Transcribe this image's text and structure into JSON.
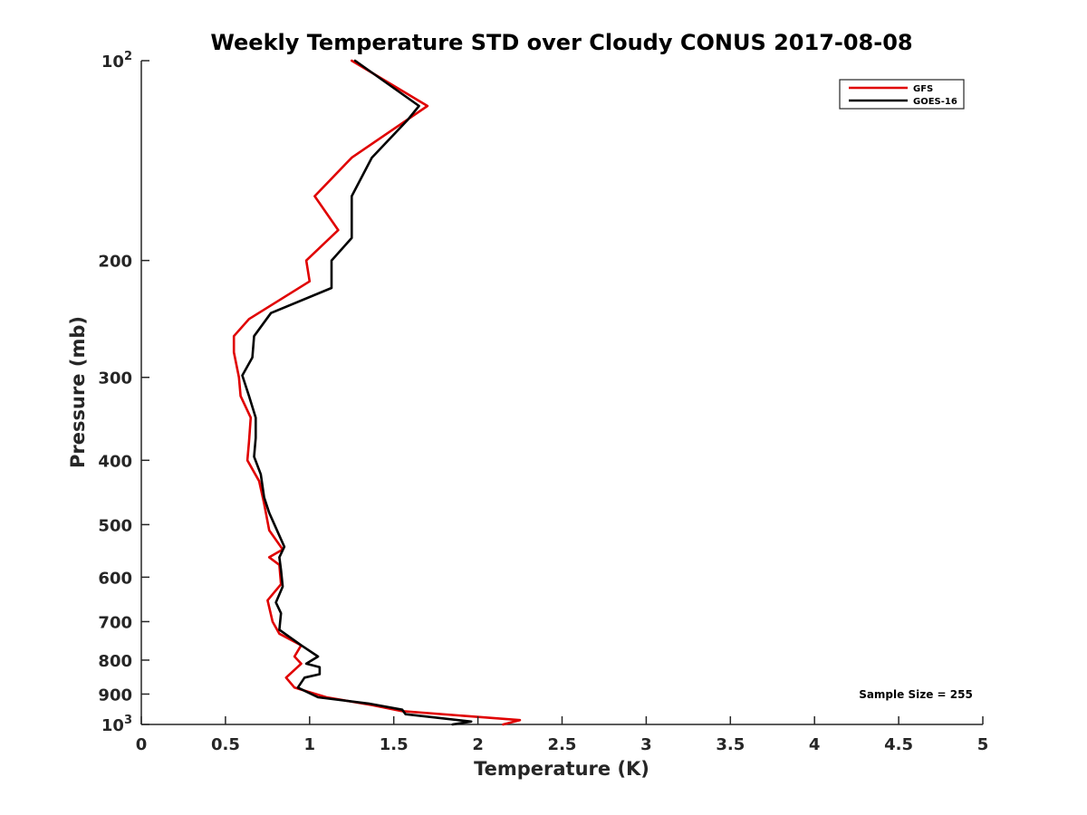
{
  "chart_data": {
    "type": "line",
    "title": "Weekly Temperature STD over Cloudy CONUS 2017-08-08",
    "xlabel": "Temperature (K)",
    "ylabel": "Pressure (mb)",
    "xlim": [
      0,
      5
    ],
    "ylim": [
      100,
      1000
    ],
    "y_scale": "log",
    "y_reversed": true,
    "grid": false,
    "legend_position": "top-right",
    "annotation": "Sample Size = 255",
    "x_ticks": [
      {
        "value": 0,
        "label": "0"
      },
      {
        "value": 0.5,
        "label": "0.5"
      },
      {
        "value": 1,
        "label": "1"
      },
      {
        "value": 1.5,
        "label": "1.5"
      },
      {
        "value": 2,
        "label": "2"
      },
      {
        "value": 2.5,
        "label": "2.5"
      },
      {
        "value": 3,
        "label": "3"
      },
      {
        "value": 3.5,
        "label": "3.5"
      },
      {
        "value": 4,
        "label": "4"
      },
      {
        "value": 4.5,
        "label": "4.5"
      },
      {
        "value": 5,
        "label": "5"
      }
    ],
    "y_ticks": [
      {
        "value": 100,
        "label": "10",
        "exp": "2"
      },
      {
        "value": 200,
        "label": "200"
      },
      {
        "value": 300,
        "label": "300"
      },
      {
        "value": 400,
        "label": "400"
      },
      {
        "value": 500,
        "label": "500"
      },
      {
        "value": 600,
        "label": "600"
      },
      {
        "value": 700,
        "label": "700"
      },
      {
        "value": 800,
        "label": "800"
      },
      {
        "value": 900,
        "label": "900"
      },
      {
        "value": 1000,
        "label": "10",
        "exp": "3"
      }
    ],
    "series": [
      {
        "name": "GFS",
        "color": "#e00000",
        "points": [
          [
            1.25,
            100
          ],
          [
            1.7,
            117
          ],
          [
            1.25,
            140
          ],
          [
            1.03,
            160
          ],
          [
            1.17,
            180
          ],
          [
            0.98,
            200
          ],
          [
            1.0,
            215
          ],
          [
            0.64,
            245
          ],
          [
            0.55,
            260
          ],
          [
            0.55,
            275
          ],
          [
            0.58,
            300
          ],
          [
            0.59,
            320
          ],
          [
            0.65,
            345
          ],
          [
            0.64,
            375
          ],
          [
            0.63,
            400
          ],
          [
            0.7,
            430
          ],
          [
            0.73,
            465
          ],
          [
            0.76,
            510
          ],
          [
            0.84,
            545
          ],
          [
            0.76,
            560
          ],
          [
            0.82,
            575
          ],
          [
            0.83,
            615
          ],
          [
            0.75,
            650
          ],
          [
            0.78,
            700
          ],
          [
            0.82,
            730
          ],
          [
            0.95,
            760
          ],
          [
            0.91,
            790
          ],
          [
            0.95,
            810
          ],
          [
            0.86,
            850
          ],
          [
            0.91,
            880
          ],
          [
            1.1,
            910
          ],
          [
            1.37,
            935
          ],
          [
            1.55,
            955
          ],
          [
            2.25,
            985
          ],
          [
            2.15,
            1000
          ]
        ]
      },
      {
        "name": "GOES-16",
        "color": "#000000",
        "points": [
          [
            1.27,
            100
          ],
          [
            1.65,
            117
          ],
          [
            1.58,
            123
          ],
          [
            1.37,
            140
          ],
          [
            1.25,
            160
          ],
          [
            1.25,
            185
          ],
          [
            1.13,
            200
          ],
          [
            1.13,
            220
          ],
          [
            0.77,
            240
          ],
          [
            0.67,
            260
          ],
          [
            0.66,
            280
          ],
          [
            0.6,
            298
          ],
          [
            0.64,
            320
          ],
          [
            0.68,
            345
          ],
          [
            0.68,
            370
          ],
          [
            0.67,
            395
          ],
          [
            0.71,
            420
          ],
          [
            0.73,
            455
          ],
          [
            0.76,
            480
          ],
          [
            0.85,
            540
          ],
          [
            0.82,
            560
          ],
          [
            0.83,
            585
          ],
          [
            0.84,
            620
          ],
          [
            0.8,
            655
          ],
          [
            0.83,
            680
          ],
          [
            0.82,
            720
          ],
          [
            0.95,
            760
          ],
          [
            1.05,
            790
          ],
          [
            0.98,
            810
          ],
          [
            1.06,
            820
          ],
          [
            1.06,
            840
          ],
          [
            0.97,
            850
          ],
          [
            0.93,
            880
          ],
          [
            1.05,
            910
          ],
          [
            1.35,
            930
          ],
          [
            1.55,
            950
          ],
          [
            1.57,
            965
          ],
          [
            1.96,
            990
          ],
          [
            1.85,
            1000
          ]
        ]
      }
    ]
  }
}
